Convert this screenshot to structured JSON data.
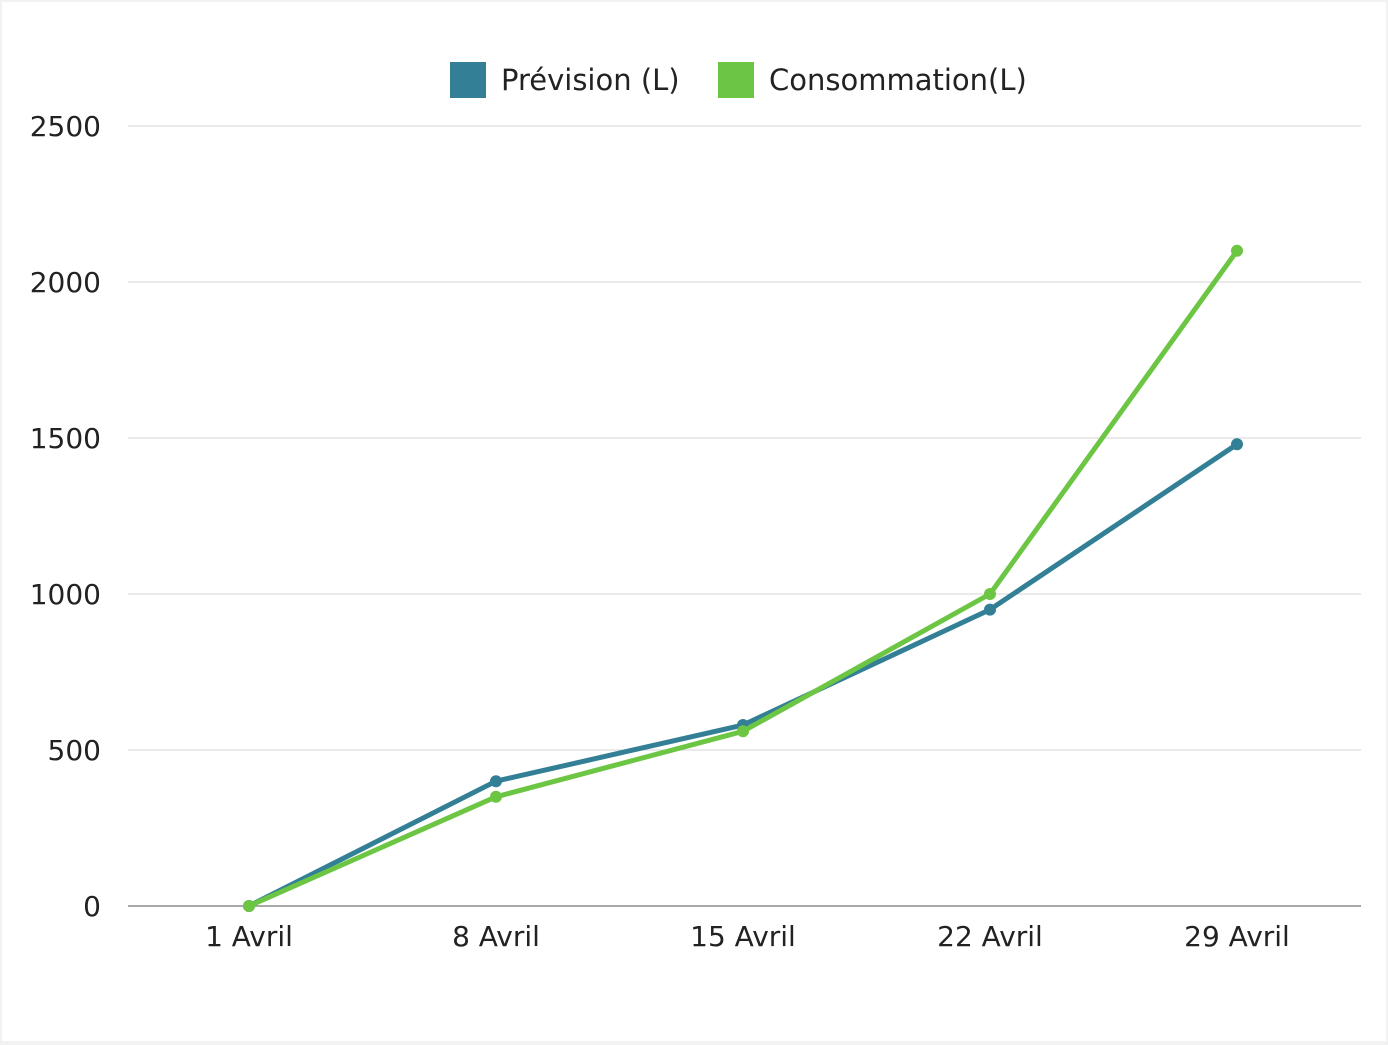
{
  "chart_data": {
    "type": "line",
    "categories": [
      "1 Avril",
      "8 Avril",
      "15 Avril",
      "22 Avril",
      "29 Avril"
    ],
    "series": [
      {
        "name": "Prévision (L)",
        "color": "#327f96",
        "values": [
          0,
          400,
          580,
          950,
          1480
        ]
      },
      {
        "name": "Consommation(L)",
        "color": "#6cc644",
        "values": [
          0,
          350,
          560,
          1000,
          2100
        ]
      }
    ],
    "ylim": [
      0,
      2500
    ],
    "yticks": [
      0,
      500,
      1000,
      1500,
      2000,
      2500
    ],
    "title": "",
    "xlabel": "",
    "ylabel": "",
    "grid": true,
    "legend_position": "top-center",
    "colors": {
      "grid": "#d4d4d4",
      "axis": "#8c8c8c",
      "text": "#222222"
    }
  }
}
